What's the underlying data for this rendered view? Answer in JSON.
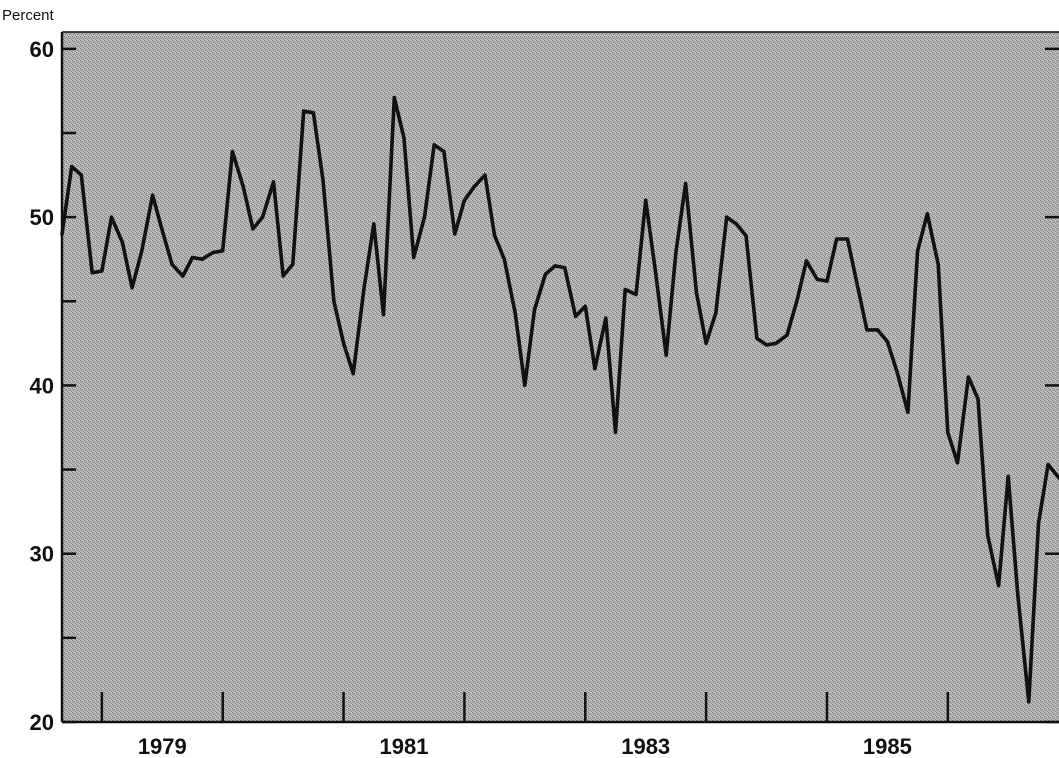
{
  "chart_data": {
    "type": "line",
    "ylabel": "Percent",
    "ylim": [
      20,
      61
    ],
    "xlim": [
      1977.67,
      1985.92
    ],
    "y_ticks_labeled": [
      20,
      30,
      40,
      50,
      60
    ],
    "y_ticks_minor": [
      25,
      35,
      45,
      55
    ],
    "y_tick_labels": [
      "20",
      "30",
      "40",
      "50",
      "60"
    ],
    "x_ticks_labeled": [
      1979,
      1981,
      1983,
      1985
    ],
    "x_tick_labels": [
      "1979",
      "1981",
      "1983",
      "1985"
    ],
    "x_ticks_minor": [
      1978,
      1980,
      1982,
      1984
    ],
    "grid": false,
    "background": "stippled gray",
    "colors": {
      "plot_background": "#a9a9a9",
      "line": "#111111",
      "axis": "#111111",
      "page": "#ffffff"
    },
    "series": [
      {
        "x": [
          1977.67,
          1977.75,
          1977.83,
          1977.92,
          1978.0,
          1978.08,
          1978.17,
          1978.25,
          1978.33,
          1978.42,
          1978.5,
          1978.58,
          1978.67,
          1978.75,
          1978.83,
          1978.92,
          1979.0,
          1979.08,
          1979.17,
          1979.25,
          1979.33,
          1979.42,
          1979.5,
          1979.58,
          1979.67,
          1979.75,
          1979.83,
          1979.92,
          1980.0,
          1980.08,
          1980.17,
          1980.25,
          1980.33,
          1980.42,
          1980.5,
          1980.58,
          1980.67,
          1980.75,
          1980.83,
          1980.92,
          1981.0,
          1981.08,
          1981.17,
          1981.25,
          1981.33,
          1981.42,
          1981.5,
          1981.58,
          1981.67,
          1981.75,
          1981.83,
          1981.92,
          1982.0,
          1982.08,
          1982.17,
          1982.25,
          1982.33,
          1982.42,
          1982.5,
          1982.58,
          1982.67,
          1982.75,
          1982.83,
          1982.92,
          1983.0,
          1983.08,
          1983.17,
          1983.25,
          1983.33,
          1983.42,
          1983.5,
          1983.58,
          1983.67,
          1983.75,
          1983.83,
          1983.92,
          1984.0,
          1984.08,
          1984.17,
          1984.25,
          1984.33,
          1984.42,
          1984.5,
          1984.58,
          1984.67,
          1984.75,
          1984.83,
          1984.92,
          1985.0,
          1985.08,
          1985.17,
          1985.25,
          1985.33,
          1985.42,
          1985.5,
          1985.58,
          1985.67,
          1985.75,
          1985.83,
          1985.92
        ],
        "values": [
          49.0,
          53.0,
          52.5,
          46.7,
          46.8,
          50.0,
          48.5,
          45.8,
          48.0,
          51.3,
          49.2,
          47.2,
          46.5,
          47.6,
          47.5,
          47.9,
          48.0,
          53.9,
          51.8,
          49.3,
          50.0,
          52.1,
          46.5,
          47.2,
          56.3,
          56.2,
          52.2,
          45.0,
          42.5,
          40.7,
          45.8,
          49.6,
          44.2,
          57.1,
          54.7,
          47.6,
          50.0,
          54.3,
          53.9,
          49.0,
          51.0,
          51.8,
          52.5,
          48.9,
          47.5,
          44.3,
          40.0,
          44.5,
          46.6,
          47.1,
          47.0,
          44.1,
          44.7,
          41.0,
          44.0,
          37.2,
          45.7,
          45.4,
          51.0,
          46.8,
          41.8,
          47.9,
          52.0,
          45.5,
          42.5,
          44.3,
          50.0,
          49.6,
          48.9,
          42.8,
          42.4,
          42.5,
          43.0,
          45.0,
          47.4,
          46.3,
          46.2,
          48.7,
          48.7,
          46.0,
          43.3,
          43.3,
          42.6,
          40.8,
          38.4,
          48.0,
          50.2,
          47.2,
          37.2,
          35.4,
          40.5,
          39.2,
          31.1,
          28.1,
          34.6,
          27.5,
          21.2,
          31.8,
          35.3,
          34.5
        ]
      }
    ]
  }
}
